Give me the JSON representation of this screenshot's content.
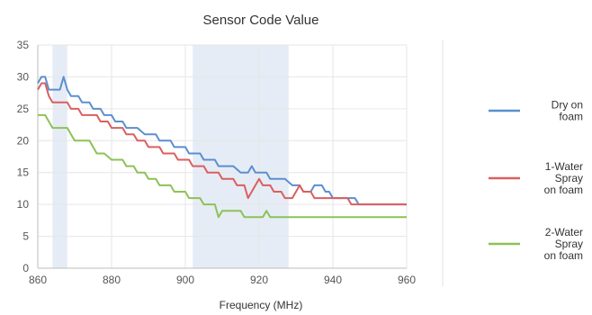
{
  "chart_data": {
    "type": "line",
    "title": "Sensor Code Value",
    "xlabel": "Frequency (MHz)",
    "ylabel": "",
    "xlim": [
      860,
      960
    ],
    "ylim": [
      0,
      35
    ],
    "x_ticks": [
      860,
      880,
      900,
      920,
      940,
      960
    ],
    "y_ticks": [
      0,
      5,
      10,
      15,
      20,
      25,
      30,
      35
    ],
    "grid": true,
    "legend_position": "right",
    "highlight_bands": [
      {
        "from": 864,
        "to": 868,
        "color": "#e6ecf6"
      },
      {
        "from": 902,
        "to": 928,
        "color": "#e6ecf6"
      }
    ],
    "series": [
      {
        "name": "Dry on foam",
        "color": "#5b8fd0",
        "points": [
          [
            860,
            29
          ],
          [
            861,
            30
          ],
          [
            862,
            30
          ],
          [
            863,
            28
          ],
          [
            865,
            28
          ],
          [
            866,
            28
          ],
          [
            867,
            30
          ],
          [
            868,
            28
          ],
          [
            869,
            27
          ],
          [
            871,
            27
          ],
          [
            872,
            26
          ],
          [
            874,
            26
          ],
          [
            875,
            25
          ],
          [
            877,
            25
          ],
          [
            878,
            24
          ],
          [
            880,
            24
          ],
          [
            881,
            23
          ],
          [
            883,
            23
          ],
          [
            884,
            22
          ],
          [
            886,
            22
          ],
          [
            887,
            22
          ],
          [
            889,
            21
          ],
          [
            892,
            21
          ],
          [
            893,
            20
          ],
          [
            896,
            20
          ],
          [
            897,
            19
          ],
          [
            900,
            19
          ],
          [
            901,
            18
          ],
          [
            904,
            18
          ],
          [
            905,
            17
          ],
          [
            908,
            17
          ],
          [
            909,
            16
          ],
          [
            912,
            16
          ],
          [
            913,
            16
          ],
          [
            915,
            15
          ],
          [
            917,
            15
          ],
          [
            918,
            16
          ],
          [
            919,
            15
          ],
          [
            922,
            15
          ],
          [
            923,
            14
          ],
          [
            926,
            14
          ],
          [
            927,
            14
          ],
          [
            929,
            13
          ],
          [
            931,
            13
          ],
          [
            932,
            12
          ],
          [
            934,
            12
          ],
          [
            935,
            13
          ],
          [
            937,
            13
          ],
          [
            938,
            12
          ],
          [
            939,
            12
          ],
          [
            940,
            11
          ],
          [
            946,
            11
          ],
          [
            947,
            10
          ],
          [
            950,
            10
          ],
          [
            951,
            10
          ],
          [
            956,
            10
          ],
          [
            957,
            10
          ],
          [
            960,
            10
          ]
        ]
      },
      {
        "name": "1-Water Spray on foam",
        "color": "#d9605f",
        "points": [
          [
            860,
            28
          ],
          [
            861,
            29
          ],
          [
            862,
            29
          ],
          [
            863,
            27
          ],
          [
            864,
            26
          ],
          [
            866,
            26
          ],
          [
            868,
            26
          ],
          [
            869,
            25
          ],
          [
            871,
            25
          ],
          [
            872,
            24
          ],
          [
            876,
            24
          ],
          [
            877,
            23
          ],
          [
            879,
            23
          ],
          [
            880,
            22
          ],
          [
            883,
            22
          ],
          [
            884,
            21
          ],
          [
            886,
            21
          ],
          [
            887,
            20
          ],
          [
            889,
            20
          ],
          [
            890,
            19
          ],
          [
            893,
            19
          ],
          [
            894,
            18
          ],
          [
            897,
            18
          ],
          [
            898,
            17
          ],
          [
            901,
            17
          ],
          [
            902,
            16
          ],
          [
            905,
            16
          ],
          [
            906,
            15
          ],
          [
            909,
            15
          ],
          [
            910,
            14
          ],
          [
            913,
            14
          ],
          [
            914,
            13
          ],
          [
            916,
            13
          ],
          [
            917,
            11
          ],
          [
            918,
            12
          ],
          [
            919,
            13
          ],
          [
            920,
            14
          ],
          [
            921,
            13
          ],
          [
            923,
            13
          ],
          [
            924,
            12
          ],
          [
            926,
            12
          ],
          [
            927,
            11
          ],
          [
            929,
            11
          ],
          [
            930,
            12
          ],
          [
            931,
            13
          ],
          [
            932,
            12
          ],
          [
            934,
            12
          ],
          [
            935,
            11
          ],
          [
            937,
            11
          ],
          [
            938,
            11
          ],
          [
            944,
            11
          ],
          [
            945,
            10
          ],
          [
            948,
            10
          ],
          [
            949,
            10
          ],
          [
            955,
            10
          ],
          [
            956,
            10
          ],
          [
            960,
            10
          ]
        ]
      },
      {
        "name": "2-Water Spray on foam",
        "color": "#8cc256",
        "points": [
          [
            860,
            24
          ],
          [
            862,
            24
          ],
          [
            863,
            23
          ],
          [
            864,
            22
          ],
          [
            866,
            22
          ],
          [
            868,
            22
          ],
          [
            869,
            21
          ],
          [
            870,
            20
          ],
          [
            872,
            20
          ],
          [
            874,
            20
          ],
          [
            875,
            19
          ],
          [
            876,
            18
          ],
          [
            878,
            18
          ],
          [
            880,
            17
          ],
          [
            883,
            17
          ],
          [
            884,
            16
          ],
          [
            886,
            16
          ],
          [
            887,
            15
          ],
          [
            889,
            15
          ],
          [
            890,
            14
          ],
          [
            892,
            14
          ],
          [
            893,
            13
          ],
          [
            896,
            13
          ],
          [
            897,
            12
          ],
          [
            900,
            12
          ],
          [
            901,
            11
          ],
          [
            904,
            11
          ],
          [
            905,
            10
          ],
          [
            908,
            10
          ],
          [
            909,
            8
          ],
          [
            910,
            9
          ],
          [
            915,
            9
          ],
          [
            916,
            8
          ],
          [
            921,
            8
          ],
          [
            922,
            9
          ],
          [
            923,
            8
          ],
          [
            926,
            8
          ],
          [
            960,
            8
          ]
        ]
      }
    ]
  }
}
